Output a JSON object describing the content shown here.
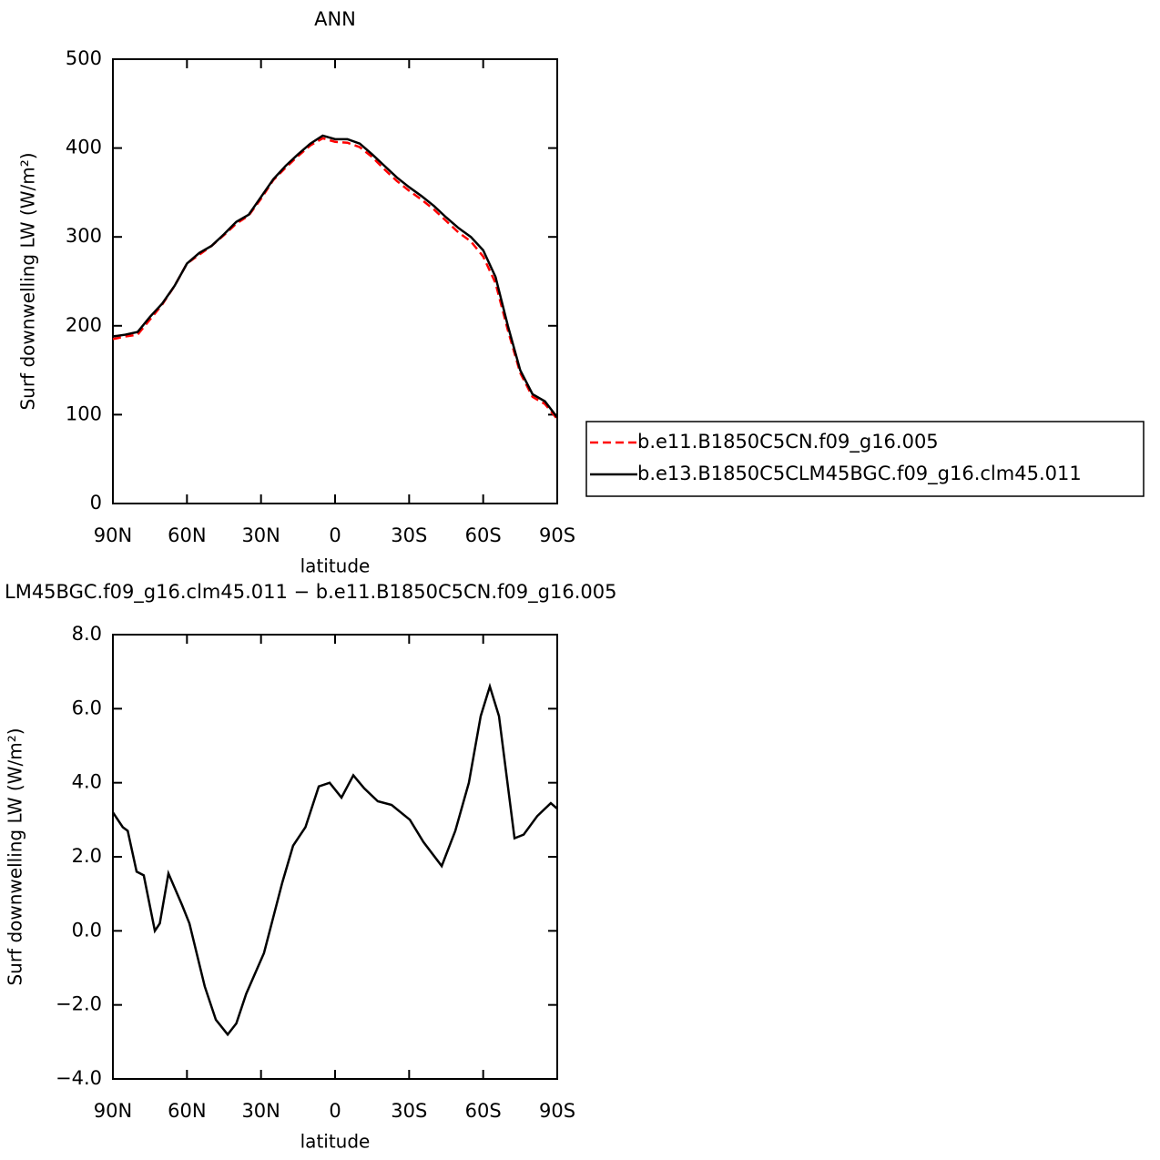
{
  "chart_data": [
    {
      "type": "line",
      "title": "ANN",
      "x_label": "latitude",
      "y_label": "Surf downwelling LW (W/m²)",
      "x": [
        90,
        85,
        80,
        75,
        70,
        65,
        60,
        55,
        50,
        45,
        40,
        35,
        30,
        25,
        20,
        15,
        10,
        5,
        0,
        -5,
        -10,
        -15,
        -20,
        -25,
        -30,
        -35,
        -40,
        -45,
        -50,
        -55,
        -60,
        -65,
        -70,
        -75,
        -80,
        -85,
        -90
      ],
      "series": [
        {
          "name": "b.e11.B1850C5CN.f09_g16.005",
          "color": "#ff0000",
          "linestyle": "dashed",
          "values": [
            185,
            188,
            190,
            207,
            224,
            245,
            270,
            280,
            290,
            302,
            315,
            324,
            343,
            364,
            378,
            391,
            403,
            411,
            407,
            406,
            401,
            390,
            376,
            363,
            352,
            342,
            331,
            318,
            305,
            295,
            278,
            248,
            195,
            147,
            120,
            112,
            95
          ]
        },
        {
          "name": "b.e13.B1850C5CLM45BGC.f09_g16.clm45.011",
          "color": "#000000",
          "linestyle": "solid",
          "values": [
            188,
            190,
            193,
            210,
            225,
            245,
            270,
            282,
            290,
            303,
            317,
            325,
            345,
            365,
            380,
            393,
            405,
            414,
            410,
            410,
            405,
            393,
            380,
            367,
            356,
            346,
            335,
            322,
            310,
            300,
            285,
            255,
            200,
            150,
            123,
            115,
            97
          ]
        }
      ],
      "xlim": [
        90,
        -90
      ],
      "xticks": [
        {
          "value": 90,
          "label": "90N"
        },
        {
          "value": 60,
          "label": "60N"
        },
        {
          "value": 30,
          "label": "30N"
        },
        0,
        {
          "value": -30,
          "label": "30S"
        },
        {
          "value": -60,
          "label": "60S"
        },
        {
          "value": -90,
          "label": "90S"
        }
      ],
      "ylim": [
        0,
        500
      ],
      "yticks": [
        0,
        100,
        200,
        300,
        400,
        500
      ],
      "legend": "right"
    },
    {
      "type": "line",
      "title": "LM45BGC.f09_g16.clm45.011 − b.e11.B1850C5CN.f09_g16.005",
      "x_label": "latitude",
      "y_label": "Surf downwelling LW (W/m²)",
      "x": [
        90,
        86,
        84,
        80.4,
        77.5,
        73,
        71,
        67.5,
        62,
        59,
        52.8,
        48.3,
        43.5,
        40,
        36,
        28.8,
        21.4,
        17,
        12,
        6.6,
        2.2,
        -2.6,
        -7.4,
        -11.8,
        -17.3,
        -22.9,
        -30.3,
        -35.8,
        -43.2,
        -48.7,
        -54.2,
        -59,
        -62.7,
        -66.4,
        -72.7,
        -76.4,
        -81.9,
        -87.4,
        -90
      ],
      "color": "#000000",
      "values": [
        3.2,
        2.8,
        2.7,
        1.6,
        1.5,
        0.0,
        0.2,
        1.55,
        0.7,
        0.2,
        -1.5,
        -2.4,
        -2.8,
        -2.5,
        -1.7,
        -0.6,
        1.3,
        2.3,
        2.8,
        3.9,
        4.0,
        3.6,
        4.2,
        3.85,
        3.5,
        3.4,
        3.0,
        2.4,
        1.75,
        2.7,
        4.0,
        5.8,
        6.6,
        5.8,
        2.5,
        2.6,
        3.1,
        3.45,
        3.3
      ],
      "xlim": [
        90,
        -90
      ],
      "xticks": [
        {
          "value": 90,
          "label": "90N"
        },
        {
          "value": 60,
          "label": "60N"
        },
        {
          "value": 30,
          "label": "30N"
        },
        0,
        {
          "value": -30,
          "label": "30S"
        },
        {
          "value": -60,
          "label": "60S"
        },
        {
          "value": -90,
          "label": "90S"
        }
      ],
      "ylim": [
        -4,
        8
      ],
      "yticks": [
        {
          "value": -4,
          "label": "−4.0"
        },
        {
          "value": -2,
          "label": "−2.0"
        },
        {
          "value": 0,
          "label": "0.0"
        },
        {
          "value": 2,
          "label": "2.0"
        },
        {
          "value": 4,
          "label": "4.0"
        },
        {
          "value": 6,
          "label": "6.0"
        },
        {
          "value": 8,
          "label": "8.0"
        }
      ]
    }
  ]
}
